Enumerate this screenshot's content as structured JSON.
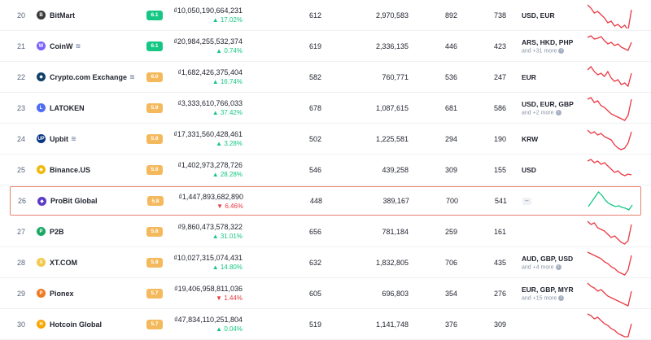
{
  "rows": [
    {
      "rank": "20",
      "name": "BitMart",
      "logo_color": "#3a3a3a",
      "logo_glyph": "B",
      "verified": false,
      "score": "6.1",
      "score_color": "green",
      "volume": "₫10,050,190,664,231",
      "change": "17.02%",
      "dir": "up",
      "c1": "612",
      "c2": "2,970,583",
      "c3": "892",
      "c4": "738",
      "fiat": "USD, EUR",
      "more": "",
      "color": "#ea3943",
      "spark": [
        2,
        6,
        12,
        10,
        14,
        18,
        24,
        22,
        28,
        26,
        30,
        27,
        33,
        8
      ]
    },
    {
      "rank": "21",
      "name": "CoinW",
      "logo_color": "#7b61ff",
      "logo_glyph": "W",
      "verified": true,
      "score": "6.1",
      "score_color": "green",
      "volume": "₫20,984,255,532,374",
      "change": "0.74%",
      "dir": "up",
      "c1": "619",
      "c2": "2,336,135",
      "c3": "446",
      "c4": "423",
      "fiat": "ARS, HKD, PHP",
      "more": "and +31 more",
      "color": "#ea3943",
      "spark": [
        4,
        2,
        6,
        5,
        3,
        8,
        12,
        10,
        14,
        12,
        16,
        18,
        20,
        10
      ]
    },
    {
      "rank": "22",
      "name": "Crypto.com Exchange",
      "logo_color": "#103f68",
      "logo_glyph": "◆",
      "verified": true,
      "score": "6.0",
      "score_color": "orange",
      "volume": "₫1,682,426,375,404",
      "change": "16.74%",
      "dir": "up",
      "c1": "582",
      "c2": "760,771",
      "c3": "536",
      "c4": "247",
      "fiat": "EUR",
      "more": "",
      "color": "#ea3943",
      "spark": [
        6,
        2,
        8,
        12,
        10,
        14,
        8,
        16,
        20,
        18,
        24,
        22,
        26,
        10
      ]
    },
    {
      "rank": "23",
      "name": "LATOKEN",
      "logo_color": "#4f6cf7",
      "logo_glyph": "L",
      "verified": false,
      "score": "5.9",
      "score_color": "orange",
      "volume": "₫3,333,610,766,033",
      "change": "37.42%",
      "dir": "up",
      "c1": "678",
      "c2": "1,087,615",
      "c3": "681",
      "c4": "586",
      "fiat": "USD, EUR, GBP",
      "more": "and +2 more",
      "color": "#ea3943",
      "spark": [
        4,
        2,
        8,
        6,
        12,
        14,
        18,
        22,
        24,
        26,
        28,
        30,
        24,
        4
      ]
    },
    {
      "rank": "24",
      "name": "Upbit",
      "logo_color": "#093687",
      "logo_glyph": "UP",
      "verified": true,
      "score": "5.9",
      "score_color": "orange",
      "volume": "₫17,331,560,428,461",
      "change": "3.28%",
      "dir": "up",
      "c1": "502",
      "c2": "1,225,581",
      "c3": "294",
      "c4": "190",
      "fiat": "KRW",
      "more": "",
      "color": "#ea3943",
      "spark": [
        4,
        8,
        6,
        10,
        8,
        12,
        14,
        16,
        22,
        26,
        28,
        26,
        20,
        6
      ]
    },
    {
      "rank": "25",
      "name": "Binance.US",
      "logo_color": "#f0b90b",
      "logo_glyph": "◆",
      "verified": false,
      "score": "5.9",
      "score_color": "orange",
      "volume": "₫1,402,973,278,726",
      "change": "28.28%",
      "dir": "up",
      "c1": "546",
      "c2": "439,258",
      "c3": "309",
      "c4": "155",
      "fiat": "USD",
      "more": "",
      "color": "#ea3943",
      "spark": [
        4,
        2,
        6,
        4,
        8,
        6,
        10,
        14,
        18,
        16,
        20,
        22,
        20,
        21
      ]
    },
    {
      "rank": "26",
      "name": "ProBit Global",
      "logo_color": "#5b3ac8",
      "logo_glyph": "◆",
      "verified": false,
      "score": "5.8",
      "score_color": "orange",
      "volume": "₫1,447,893,682,890",
      "change": "6.46%",
      "dir": "down",
      "c1": "448",
      "c2": "389,167",
      "c3": "700",
      "c4": "541",
      "fiat": "--",
      "more": "",
      "color": "#16c784",
      "spark": [
        20,
        14,
        8,
        2,
        6,
        12,
        16,
        18,
        20,
        19,
        21,
        22,
        24,
        18
      ]
    },
    {
      "rank": "27",
      "name": "P2B",
      "logo_color": "#1aa864",
      "logo_glyph": "P",
      "verified": false,
      "score": "5.8",
      "score_color": "orange",
      "volume": "₫9,860,473,578,322",
      "change": "31.01%",
      "dir": "up",
      "c1": "656",
      "c2": "781,184",
      "c3": "259",
      "c4": "161",
      "fiat": "",
      "more": "",
      "color": "#ea3943",
      "spark": [
        2,
        6,
        4,
        10,
        12,
        14,
        18,
        22,
        20,
        24,
        28,
        30,
        26,
        6
      ]
    },
    {
      "rank": "28",
      "name": "XT.COM",
      "logo_color": "#f2c94c",
      "logo_glyph": "X",
      "verified": false,
      "score": "5.8",
      "score_color": "orange",
      "volume": "₫10,027,315,074,431",
      "change": "14.80%",
      "dir": "up",
      "c1": "632",
      "c2": "1,832,805",
      "c3": "706",
      "c4": "435",
      "fiat": "AUD, GBP, USD",
      "more": "and +4 more",
      "color": "#ea3943",
      "spark": [
        2,
        4,
        6,
        8,
        10,
        14,
        16,
        20,
        22,
        26,
        28,
        30,
        24,
        6
      ]
    },
    {
      "rank": "29",
      "name": "Pionex",
      "logo_color": "#f07a22",
      "logo_glyph": "P",
      "verified": false,
      "score": "5.7",
      "score_color": "orange",
      "volume": "₫19,406,958,811,036",
      "change": "1.44%",
      "dir": "down",
      "c1": "605",
      "c2": "696,803",
      "c3": "354",
      "c4": "276",
      "fiat": "EUR, GBP, MYR",
      "more": "and +15 more",
      "color": "#ea3943",
      "spark": [
        2,
        6,
        8,
        12,
        10,
        14,
        18,
        20,
        22,
        24,
        26,
        28,
        30,
        12
      ]
    },
    {
      "rank": "30",
      "name": "Hotcoin Global",
      "logo_color": "#f7a600",
      "logo_glyph": "H",
      "verified": false,
      "score": "5.7",
      "score_color": "orange",
      "volume": "₫47,834,110,251,804",
      "change": "0.04%",
      "dir": "up",
      "c1": "519",
      "c2": "1,141,748",
      "c3": "376",
      "c4": "309",
      "fiat": "",
      "more": "",
      "color": "#ea3943",
      "spark": [
        2,
        4,
        8,
        6,
        10,
        14,
        16,
        20,
        22,
        26,
        28,
        30,
        30,
        14
      ]
    }
  ]
}
